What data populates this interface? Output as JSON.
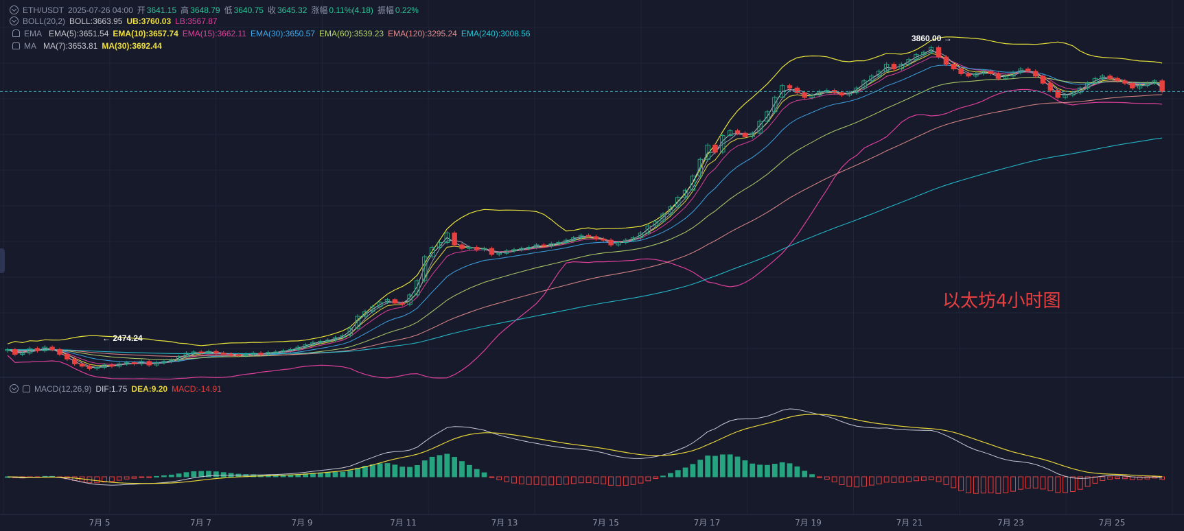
{
  "header": {
    "symbol": "ETH/USDT",
    "datetime": "2025-07-26 04:00",
    "open_label": "开",
    "open": "3641.15",
    "high_label": "高",
    "high": "3648.79",
    "low_label": "低",
    "low": "3640.75",
    "close_label": "收",
    "close": "3645.32",
    "change_label": "涨幅",
    "change": "0.11%(4.18)",
    "amplitude_label": "振幅",
    "amplitude": "0.22%"
  },
  "indicators": {
    "boll": {
      "name": "BOLL(20,2)",
      "mid": "BOLL:3663.95",
      "ub": "UB:3760.03",
      "lb": "LB:3567.87"
    },
    "ema": {
      "name": "EMA",
      "items": [
        "EMA(5):3651.54",
        "EMA(10):3657.74",
        "EMA(15):3662.11",
        "EMA(30):3650.57",
        "EMA(60):3539.23",
        "EMA(120):3295.24",
        "EMA(240):3008.56"
      ]
    },
    "ma": {
      "name": "MA",
      "items": [
        "MA(7):3653.81",
        "MA(30):3692.44"
      ]
    },
    "macd": {
      "name": "MACD(12,26,9)",
      "dif": "DIF:1.75",
      "dea": "DEA:9.20",
      "macd": "MACD:-14.91"
    }
  },
  "markers": {
    "high": "3860.00",
    "low": "2474.24"
  },
  "annotation": "以太坊4小时图",
  "colors": {
    "background": "#161a2b",
    "up": "#26a37f",
    "down": "#e8403f",
    "boll_band": "#e8e33a",
    "ema5": "#c7c7cf",
    "ema10": "#f0e040",
    "ema15": "#e0409c",
    "ema30": "#3fa6e8",
    "ema60": "#b9d66b",
    "ema120": "#e68c8c",
    "ema240": "#26c6d6",
    "dif": "#c9c9d6",
    "dea": "#e8d53a"
  },
  "chart_data": {
    "type": "candlestick",
    "x_ticks": [
      "7月 5",
      "7月 7",
      "7月 9",
      "7月 11",
      "7月 13",
      "7月 15",
      "7月 17",
      "7月 19",
      "7月 21",
      "7月 23",
      "7月 25"
    ],
    "price_range": [
      2400,
      3900
    ],
    "ohlc_closes": [
      2560,
      2540,
      2545,
      2565,
      2555,
      2570,
      2560,
      2540,
      2520,
      2500,
      2490,
      2480,
      2485,
      2495,
      2490,
      2500,
      2505,
      2500,
      2510,
      2495,
      2505,
      2510,
      2515,
      2530,
      2545,
      2550,
      2548,
      2552,
      2545,
      2540,
      2538,
      2535,
      2540,
      2545,
      2540,
      2548,
      2550,
      2555,
      2560,
      2570,
      2580,
      2590,
      2595,
      2600,
      2610,
      2620,
      2650,
      2700,
      2720,
      2740,
      2760,
      2770,
      2755,
      2750,
      2790,
      2850,
      2950,
      2990,
      3010,
      3050,
      3000,
      2985,
      2990,
      2980,
      2985,
      2960,
      2965,
      2975,
      2980,
      2985,
      2990,
      3000,
      2995,
      3005,
      3010,
      3020,
      3030,
      3040,
      3035,
      3025,
      3020,
      3000,
      3010,
      3020,
      3030,
      3050,
      3080,
      3100,
      3130,
      3160,
      3200,
      3230,
      3290,
      3360,
      3420,
      3390,
      3460,
      3480,
      3470,
      3455,
      3470,
      3520,
      3560,
      3620,
      3670,
      3660,
      3640,
      3620,
      3630,
      3645,
      3650,
      3640,
      3630,
      3640,
      3660,
      3690,
      3710,
      3730,
      3760,
      3740,
      3760,
      3780,
      3800,
      3810,
      3830,
      3790,
      3760,
      3740,
      3720,
      3710,
      3720,
      3730,
      3720,
      3700,
      3710,
      3725,
      3740,
      3730,
      3710,
      3680,
      3650,
      3620,
      3630,
      3640,
      3660,
      3680,
      3700,
      3710,
      3700,
      3690,
      3680,
      3660,
      3670,
      3680,
      3690,
      3645
    ],
    "macd_hist_range": [
      -60,
      60
    ]
  }
}
